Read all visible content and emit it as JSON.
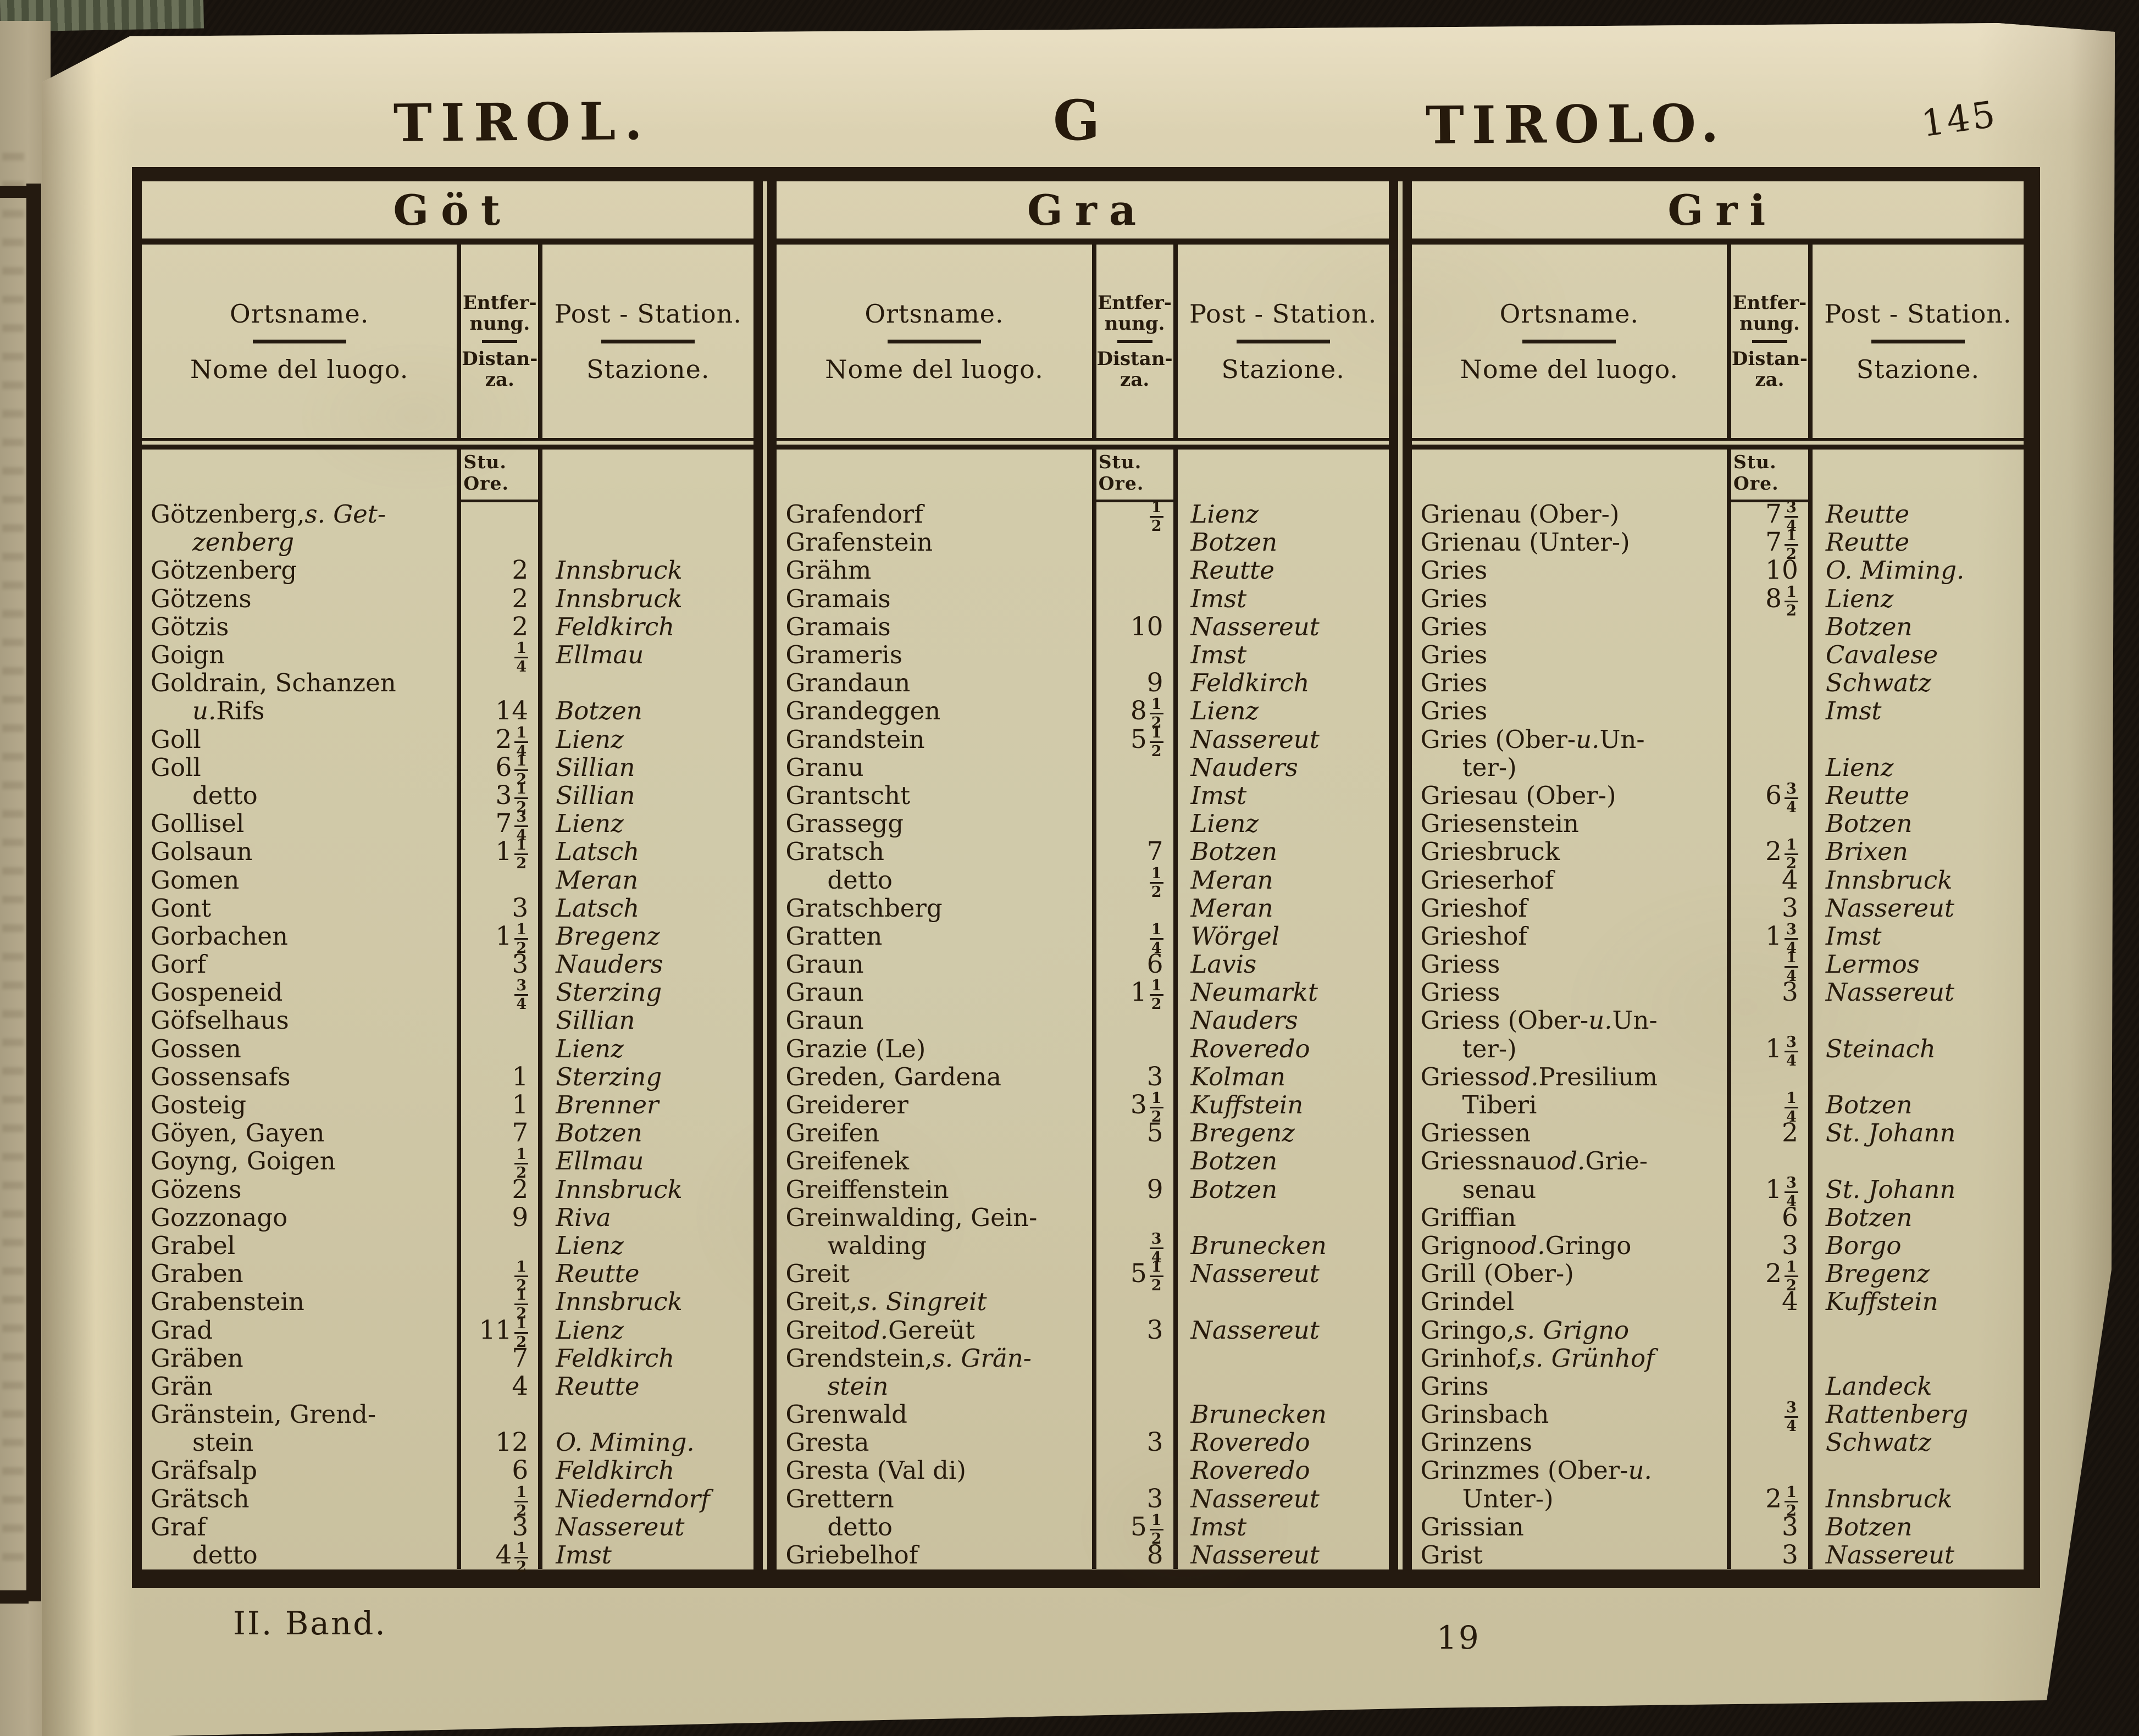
{
  "page": {
    "header": {
      "left": "TIROL.",
      "center": "G",
      "right": "TIROLO.",
      "page_number": "145"
    },
    "footer": {
      "volume": "II. Band.",
      "sheet": "19"
    }
  },
  "table": {
    "col_headers": {
      "name_de": "Ortsname.",
      "name_it": "Nome del luogo.",
      "dist_de": [
        "Entfer-",
        "nung."
      ],
      "dist_it": [
        "Distan-",
        "za."
      ],
      "station_de": "Post - Station.",
      "station_it": "Stazione.",
      "unit": "Stu. Ore."
    },
    "sections": [
      {
        "letters": "Göt",
        "rows": [
          {
            "n": "Götzenberg, *s. Get-*",
            "d": "",
            "s": ""
          },
          {
            "n": "*zenberg*",
            "i": 1,
            "d": "",
            "s": ""
          },
          {
            "n": "Götzenberg",
            "d": "2",
            "s": "Innsbruck"
          },
          {
            "n": "Götzens",
            "d": "2",
            "s": "Innsbruck"
          },
          {
            "n": "Götzis",
            "d": "2",
            "s": "Feldkirch"
          },
          {
            "n": "Goign",
            "d": "1/4",
            "s": "Ellmau"
          },
          {
            "n": "Goldrain, Schanzen",
            "d": "",
            "s": ""
          },
          {
            "n": "*u.* Rifs",
            "i": 1,
            "d": "14",
            "s": "Botzen"
          },
          {
            "n": "Goll",
            "d": "2 1/4",
            "s": "Lienz"
          },
          {
            "n": "Goll",
            "d": "6 1/2",
            "s": "Sillian"
          },
          {
            "n": "detto",
            "i": 1,
            "d": "3 1/2",
            "s": "Sillian"
          },
          {
            "n": "Gollisel",
            "d": "7 3/4",
            "s": "Lienz"
          },
          {
            "n": "Golsaun",
            "d": "1 1/2",
            "s": "Latsch"
          },
          {
            "n": "Gomen",
            "d": "",
            "s": "Meran"
          },
          {
            "n": "Gont",
            "d": "3",
            "s": "Latsch"
          },
          {
            "n": "Gorbachen",
            "d": "1 1/2",
            "s": "Bregenz"
          },
          {
            "n": "Gorf",
            "d": "3",
            "s": "Nauders"
          },
          {
            "n": "Gospeneid",
            "d": "3/4",
            "s": "Sterzing"
          },
          {
            "n": "Göfselhaus",
            "d": "",
            "s": "Sillian"
          },
          {
            "n": "Gossen",
            "d": "",
            "s": "Lienz"
          },
          {
            "n": "Gossensafs",
            "d": "1",
            "s": "Sterzing"
          },
          {
            "n": "Gosteig",
            "d": "1",
            "s": "Brenner"
          },
          {
            "n": "Göyen, Gayen",
            "d": "7",
            "s": "Botzen"
          },
          {
            "n": "Goyng, Goigen",
            "d": "1/2",
            "s": "Ellmau"
          },
          {
            "n": "Gözens",
            "d": "2",
            "s": "Innsbruck"
          },
          {
            "n": "Gozzonago",
            "d": "9",
            "s": "Riva"
          },
          {
            "n": "Grabel",
            "d": "",
            "s": "Lienz"
          },
          {
            "n": "Graben",
            "d": "1/2",
            "s": "Reutte"
          },
          {
            "n": "Grabenstein",
            "d": "1/2",
            "s": "Innsbruck"
          },
          {
            "n": "Grad",
            "d": "11 1/2",
            "s": "Lienz"
          },
          {
            "n": "Gräben",
            "d": "7",
            "s": "Feldkirch"
          },
          {
            "n": "Grän",
            "d": "4",
            "s": "Reutte"
          },
          {
            "n": "Gränstein, Grend-",
            "d": "",
            "s": ""
          },
          {
            "n": "stein",
            "i": 1,
            "d": "12",
            "s": "O. Miming."
          },
          {
            "n": "Gräfsalp",
            "d": "6",
            "s": "Feldkirch"
          },
          {
            "n": "Grätsch",
            "d": "1/2",
            "s": "Niederndorf"
          },
          {
            "n": "Graf",
            "d": "3",
            "s": "Nassereut"
          },
          {
            "n": "detto",
            "i": 1,
            "d": "4 1/2",
            "s": "Imst"
          }
        ]
      },
      {
        "letters": "Gra",
        "rows": [
          {
            "n": "Grafendorf",
            "d": "1/2",
            "s": "Lienz"
          },
          {
            "n": "Grafenstein",
            "d": "",
            "s": "Botzen"
          },
          {
            "n": "Grähm",
            "d": "",
            "s": "Reutte"
          },
          {
            "n": "Gramais",
            "d": "",
            "s": "Imst"
          },
          {
            "n": "Gramais",
            "d": "10",
            "s": "Nassereut"
          },
          {
            "n": "Grameris",
            "d": "",
            "s": "Imst"
          },
          {
            "n": "Grandaun",
            "d": "9",
            "s": "Feldkirch"
          },
          {
            "n": "Grandeggen",
            "d": "8 1/2",
            "s": "Lienz"
          },
          {
            "n": "Grandstein",
            "d": "5 1/2",
            "s": "Nassereut"
          },
          {
            "n": "Granu",
            "d": "",
            "s": "Nauders"
          },
          {
            "n": "Grantscht",
            "d": "",
            "s": "Imst"
          },
          {
            "n": "Grassegg",
            "d": "",
            "s": "Lienz"
          },
          {
            "n": "Gratsch",
            "d": "7",
            "s": "Botzen"
          },
          {
            "n": "detto",
            "i": 1,
            "d": "1/2",
            "s": "Meran"
          },
          {
            "n": "Gratschberg",
            "d": "",
            "s": "Meran"
          },
          {
            "n": "Gratten",
            "d": "1/4",
            "s": "Wörgel"
          },
          {
            "n": "Graun",
            "d": "6",
            "s": "Lavis"
          },
          {
            "n": "Graun",
            "d": "1 1/2",
            "s": "Neumarkt"
          },
          {
            "n": "Graun",
            "d": "",
            "s": "Nauders"
          },
          {
            "n": "Grazie (Le)",
            "d": "",
            "s": "Roveredo"
          },
          {
            "n": "Greden, Gardena",
            "d": "3",
            "s": "Kolman"
          },
          {
            "n": "Greiderer",
            "d": "3 1/2",
            "s": "Kuffstein"
          },
          {
            "n": "Greifen",
            "d": "5",
            "s": "Bregenz"
          },
          {
            "n": "Greifenek",
            "d": "",
            "s": "Botzen"
          },
          {
            "n": "Greiffenstein",
            "d": "9",
            "s": "Botzen"
          },
          {
            "n": "Greinwalding, Gein-",
            "d": "",
            "s": ""
          },
          {
            "n": "walding",
            "i": 1,
            "d": "3/4",
            "s": "Brunecken"
          },
          {
            "n": "Greit",
            "d": "5 1/2",
            "s": "Nassereut"
          },
          {
            "n": "Greit, *s. Singreit*",
            "d": "",
            "s": ""
          },
          {
            "n": "Greit *od.* Gereüt",
            "d": "3",
            "s": "Nassereut"
          },
          {
            "n": "Grendstein, *s. Grän-*",
            "d": "",
            "s": ""
          },
          {
            "n": "*stein*",
            "i": 1,
            "d": "",
            "s": ""
          },
          {
            "n": "Grenwald",
            "d": "",
            "s": "Brunecken"
          },
          {
            "n": "Gresta",
            "d": "3",
            "s": "Roveredo"
          },
          {
            "n": "Gresta (Val di)",
            "d": "",
            "s": "Roveredo"
          },
          {
            "n": "Grettern",
            "d": "3",
            "s": "Nassereut"
          },
          {
            "n": "detto",
            "i": 1,
            "d": "5 1/2",
            "s": "Imst"
          },
          {
            "n": "Griebelhof",
            "d": "8",
            "s": "Nassereut"
          }
        ]
      },
      {
        "letters": "Gri",
        "rows": [
          {
            "n": "Grienau (Ober-)",
            "d": "7 3/4",
            "s": "Reutte"
          },
          {
            "n": "Grienau (Unter-)",
            "d": "7 1/2",
            "s": "Reutte"
          },
          {
            "n": "Gries",
            "d": "10",
            "s": "O. Miming."
          },
          {
            "n": "Gries",
            "d": "8 1/2",
            "s": "Lienz"
          },
          {
            "n": "Gries",
            "d": "",
            "s": "Botzen"
          },
          {
            "n": "Gries",
            "d": "",
            "s": "Cavalese"
          },
          {
            "n": "Gries",
            "d": "",
            "s": "Schwatz"
          },
          {
            "n": "Gries",
            "d": "",
            "s": "Imst"
          },
          {
            "n": "Gries (Ober- *u.* Un-",
            "d": "",
            "s": ""
          },
          {
            "n": "ter-)",
            "i": 1,
            "d": "",
            "s": "Lienz"
          },
          {
            "n": "Griesau (Ober-)",
            "d": "6 3/4",
            "s": "Reutte"
          },
          {
            "n": "Griesenstein",
            "d": "",
            "s": "Botzen"
          },
          {
            "n": "Griesbruck",
            "d": "2 1/2",
            "s": "Brixen"
          },
          {
            "n": "Grieserhof",
            "d": "4",
            "s": "Innsbruck"
          },
          {
            "n": "Grieshof",
            "d": "3",
            "s": "Nassereut"
          },
          {
            "n": "Grieshof",
            "d": "1 3/4",
            "s": "Imst"
          },
          {
            "n": "Griess",
            "d": "1/4",
            "s": "Lermos"
          },
          {
            "n": "Griess",
            "d": "3",
            "s": "Nassereut"
          },
          {
            "n": "Griess (Ober- *u.* Un-",
            "d": "",
            "s": ""
          },
          {
            "n": "ter-)",
            "i": 1,
            "d": "1 3/4",
            "s": "Steinach"
          },
          {
            "n": "Griess *od.* Presilium",
            "d": "",
            "s": ""
          },
          {
            "n": "Tiberi",
            "i": 1,
            "d": "1/4",
            "s": "Botzen"
          },
          {
            "n": "Griessen",
            "d": "2",
            "s": "St. Johann"
          },
          {
            "n": "Griessnau *od.* Grie-",
            "d": "",
            "s": ""
          },
          {
            "n": "senau",
            "i": 1,
            "d": "1 3/4",
            "s": "St. Johann"
          },
          {
            "n": "Griffian",
            "d": "6",
            "s": "Botzen"
          },
          {
            "n": "Grigno *od.* Gringo",
            "d": "3",
            "s": "Borgo"
          },
          {
            "n": "Grill (Ober-)",
            "d": "2 1/2",
            "s": "Bregenz"
          },
          {
            "n": "Grindel",
            "d": "4",
            "s": "Kuffstein"
          },
          {
            "n": "Gringo, *s. Grigno*",
            "d": "",
            "s": ""
          },
          {
            "n": "Grinhof, *s. Grünhof*",
            "d": "",
            "s": ""
          },
          {
            "n": "Grins",
            "d": "",
            "s": "Landeck"
          },
          {
            "n": "Grinsbach",
            "d": "3/4",
            "s": "Rattenberg"
          },
          {
            "n": "Grinzens",
            "d": "",
            "s": "Schwatz"
          },
          {
            "n": "Grinzmes (Ober- *u.*",
            "d": "",
            "s": ""
          },
          {
            "n": "Unter-)",
            "i": 1,
            "d": "2 1/2",
            "s": "Innsbruck"
          },
          {
            "n": "Grissian",
            "d": "3",
            "s": "Botzen"
          },
          {
            "n": "Grist",
            "d": "3",
            "s": "Nassereut"
          }
        ]
      }
    ]
  },
  "colors": {
    "ink": "#241a10",
    "paper": "#cfc7a6"
  }
}
